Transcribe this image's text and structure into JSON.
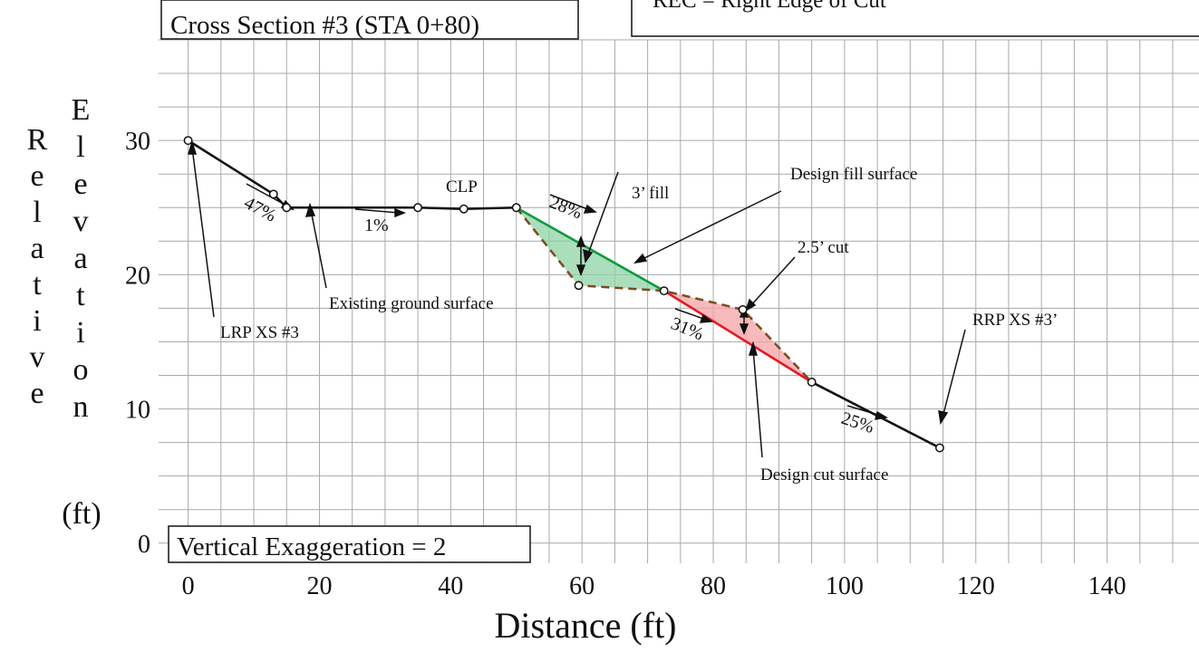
{
  "chart_data": {
    "type": "line",
    "title": "Cross Section #3 (STA 0+80)",
    "xlabel": "Distance (ft)",
    "ylabel": "Relative Elevation (ft)",
    "ylabel_lines": [
      "Relative",
      "Elevation",
      "(ft)"
    ],
    "x_ticks": [
      "0",
      "20",
      "40",
      "60",
      "80",
      "100",
      "120",
      "140"
    ],
    "y_ticks": [
      "0",
      "10",
      "20",
      "30"
    ],
    "xlim": [
      -4.5,
      154
    ],
    "ylim": [
      -1.5,
      37.5
    ],
    "grid": true,
    "legend_text": "REC = Right Edge of Cut",
    "note": "Vertical Exaggeration = 2",
    "series": [
      {
        "name": "Existing ground surface",
        "color": "#111111",
        "points": [
          [
            0,
            30
          ],
          [
            13,
            26
          ],
          [
            15,
            25
          ],
          [
            35,
            25
          ],
          [
            42,
            24.9
          ],
          [
            50,
            25
          ]
        ]
      },
      {
        "name": "Existing ground surface (dashed)",
        "color": "#7a4a22",
        "dashed": true,
        "points": [
          [
            50,
            25
          ],
          [
            59.5,
            19.2
          ],
          [
            72.5,
            18.8
          ],
          [
            84.5,
            17.4
          ],
          [
            95,
            12
          ]
        ]
      },
      {
        "name": "Design fill surface",
        "color": "#0f9a3a",
        "points": [
          [
            50,
            25
          ],
          [
            72.5,
            18.8
          ]
        ]
      },
      {
        "name": "Design cut surface",
        "color": "#e11b22",
        "points": [
          [
            72.5,
            18.8
          ],
          [
            95,
            12
          ]
        ]
      },
      {
        "name": "Daylight",
        "color": "#111111",
        "points": [
          [
            95,
            12
          ],
          [
            114.5,
            7.1
          ]
        ]
      }
    ],
    "fill_region": {
      "color": "#8fd3a6",
      "points": [
        [
          50,
          25
        ],
        [
          72.5,
          18.8
        ],
        [
          59.5,
          19.2
        ]
      ]
    },
    "cut_region": {
      "color": "#f4a3a6",
      "points": [
        [
          72.5,
          18.8
        ],
        [
          84.5,
          17.4
        ],
        [
          95,
          12
        ]
      ]
    },
    "markers": [
      [
        0,
        30
      ],
      [
        13,
        26
      ],
      [
        15,
        25
      ],
      [
        35,
        25
      ],
      [
        42,
        24.9
      ],
      [
        50,
        25
      ],
      [
        59.5,
        19.2
      ],
      [
        72.5,
        18.8
      ],
      [
        84.5,
        17.4
      ],
      [
        95,
        12
      ],
      [
        114.5,
        7.1
      ]
    ],
    "annotations": {
      "lrp": "LRP XS #3",
      "existing": "Existing ground surface",
      "clp": "CLP",
      "fill3": "3’ fill",
      "design_fill": "Design fill surface",
      "cut25": "2.5’ cut",
      "rrp": "RRP XS #3’",
      "design_cut": "Design cut surface",
      "slope_47": "47%",
      "slope_1": "1%",
      "slope_28": "28%",
      "slope_31": "31%",
      "slope_25": "25%"
    }
  }
}
